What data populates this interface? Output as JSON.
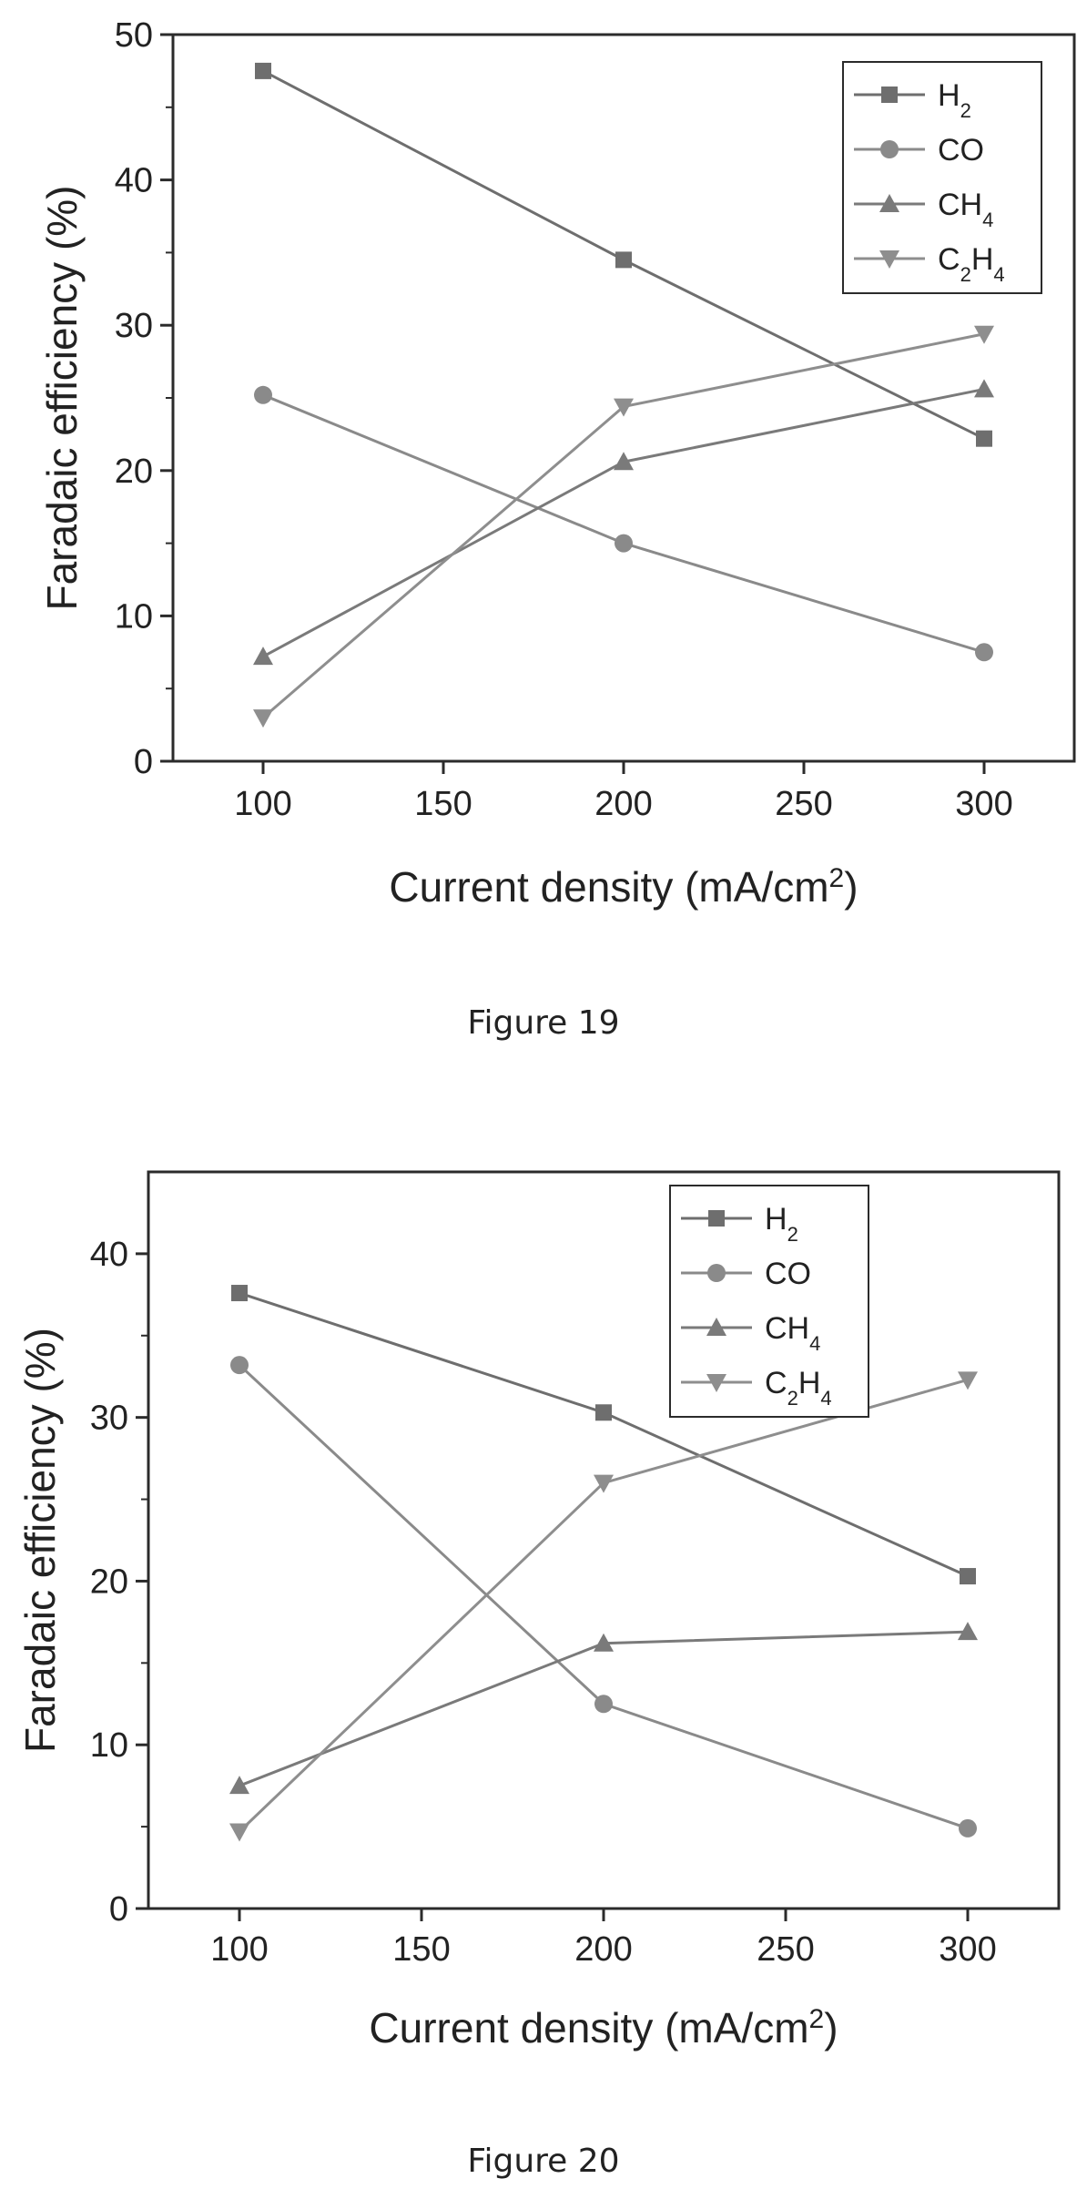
{
  "chart_data": [
    {
      "type": "line",
      "caption": "Figure 19",
      "x": [
        100,
        200,
        300
      ],
      "xlabel_base": "Current density (mA/cm",
      "xlabel_sup": "2",
      "xlabel_end": ")",
      "ylabel": "Faradaic efficiency (%)",
      "xlim": [
        75,
        325
      ],
      "ylim": [
        0,
        50
      ],
      "xticks": [
        100,
        150,
        200,
        250,
        300
      ],
      "yticks": [
        0,
        10,
        20,
        30,
        40,
        50
      ],
      "legend_position": "top-right",
      "series": [
        {
          "name": "H",
          "sub": "2",
          "marker": "square",
          "values": [
            47.5,
            34.5,
            22.2
          ]
        },
        {
          "name": "CO",
          "sub": "",
          "marker": "circle",
          "values": [
            25.2,
            15.0,
            7.5
          ]
        },
        {
          "name": "CH",
          "sub": "4",
          "marker": "triangle-up",
          "values": [
            7.2,
            20.6,
            25.6
          ]
        },
        {
          "name": "C",
          "sub": "2",
          "name2": "H",
          "sub2": "4",
          "marker": "triangle-down",
          "values": [
            3.0,
            24.4,
            29.4
          ]
        }
      ]
    },
    {
      "type": "line",
      "caption": "Figure 20",
      "x": [
        100,
        200,
        300
      ],
      "xlabel_base": "Current density (mA/cm",
      "xlabel_sup": "2",
      "xlabel_end": ")",
      "ylabel": "Faradaic efficiency (%)",
      "xlim": [
        75,
        325
      ],
      "ylim": [
        0,
        45
      ],
      "xticks": [
        100,
        150,
        200,
        250,
        300
      ],
      "yticks": [
        0,
        10,
        20,
        30,
        40
      ],
      "legend_position": "top-right",
      "series": [
        {
          "name": "H",
          "sub": "2",
          "marker": "square",
          "values": [
            37.6,
            30.3,
            20.3
          ]
        },
        {
          "name": "CO",
          "sub": "",
          "marker": "circle",
          "values": [
            33.2,
            12.5,
            4.9
          ]
        },
        {
          "name": "CH",
          "sub": "4",
          "marker": "triangle-up",
          "values": [
            7.5,
            16.2,
            16.9
          ]
        },
        {
          "name": "C",
          "sub": "2",
          "name2": "H",
          "sub2": "4",
          "marker": "triangle-down",
          "values": [
            4.7,
            26.0,
            32.3
          ]
        }
      ]
    }
  ],
  "colors": {
    "axis": "#2b2b2b",
    "h2": "#6e6e6e",
    "co": "#8a8a8a",
    "ch4": "#7a7a7a",
    "c2h4": "#8e8e8e"
  }
}
